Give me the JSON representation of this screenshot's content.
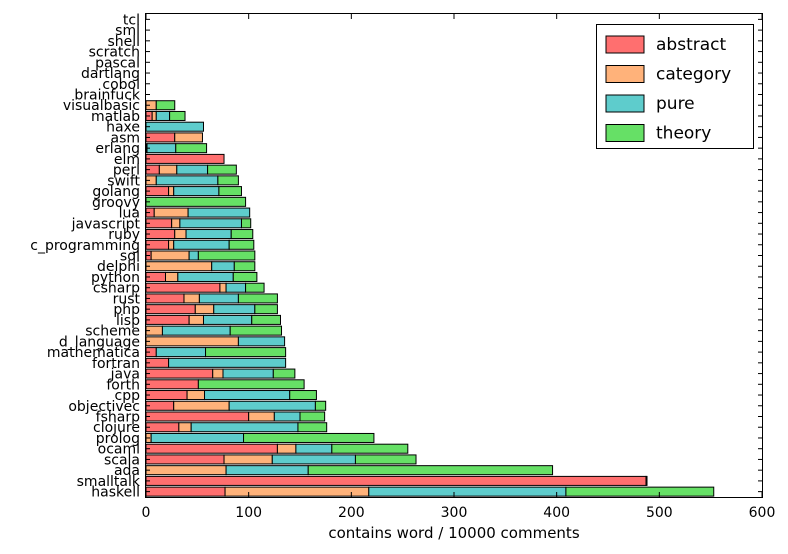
{
  "chart_data": {
    "type": "bar",
    "orientation": "horizontal",
    "stacked": true,
    "title": "",
    "xlabel": "contains word / 10000 comments",
    "ylabel": "",
    "xlim": [
      0,
      600
    ],
    "xticks": [
      0,
      100,
      200,
      300,
      400,
      500,
      600
    ],
    "grid": false,
    "legend_position": "top-right",
    "categories": [
      "haskell",
      "smalltalk",
      "ada",
      "scala",
      "ocaml",
      "prolog",
      "clojure",
      "fsharp",
      "objectivec",
      "cpp",
      "forth",
      "java",
      "fortran",
      "mathematica",
      "d_language",
      "scheme",
      "lisp",
      "php",
      "rust",
      "csharp",
      "python",
      "delphi",
      "sql",
      "c_programming",
      "ruby",
      "javascript",
      "lua",
      "groovy",
      "golang",
      "swift",
      "perl",
      "elm",
      "erlang",
      "asm",
      "haxe",
      "matlab",
      "visualbasic",
      "brainfuck",
      "cobol",
      "dartlang",
      "pascal",
      "scratch",
      "shell",
      "sml",
      "tcl"
    ],
    "series": [
      {
        "name": "abstract",
        "color": "#ff6f6f",
        "values": [
          77,
          487,
          0,
          76,
          128,
          0,
          32,
          100,
          27,
          40,
          51,
          65,
          22,
          10,
          0,
          0,
          42,
          48,
          37,
          72,
          19,
          0,
          5,
          22,
          28,
          25,
          8,
          0,
          22,
          0,
          13,
          76,
          0,
          28,
          0,
          6,
          0,
          0,
          0,
          0,
          0,
          0,
          0,
          0,
          0
        ]
      },
      {
        "name": "category",
        "color": "#ffb27a",
        "values": [
          140,
          1,
          78,
          47,
          18,
          5,
          12,
          25,
          54,
          17,
          0,
          10,
          0,
          0,
          90,
          16,
          14,
          18,
          15,
          6,
          12,
          64,
          37,
          5,
          11,
          8,
          33,
          0,
          5,
          10,
          17,
          0,
          1,
          27,
          0,
          4,
          10,
          0,
          0,
          0,
          0,
          0,
          0,
          0,
          0
        ]
      },
      {
        "name": "pure",
        "color": "#5ecccc",
        "values": [
          192,
          0,
          80,
          81,
          35,
          90,
          104,
          25,
          84,
          83,
          0,
          49,
          114,
          48,
          45,
          66,
          47,
          40,
          38,
          19,
          54,
          22,
          9,
          54,
          44,
          60,
          60,
          0,
          44,
          60,
          30,
          0,
          28,
          0,
          56,
          13,
          0,
          0,
          0,
          0,
          0,
          0,
          0,
          0,
          0
        ]
      },
      {
        "name": "theory",
        "color": "#66e066",
        "values": [
          144,
          0,
          238,
          59,
          74,
          127,
          28,
          24,
          10,
          26,
          103,
          21,
          0,
          78,
          0,
          50,
          28,
          22,
          38,
          18,
          23,
          20,
          55,
          24,
          21,
          9,
          0,
          97,
          22,
          20,
          28,
          0,
          30,
          0,
          0,
          15,
          18,
          0,
          0,
          0,
          0,
          0,
          0,
          0,
          0
        ]
      }
    ]
  }
}
